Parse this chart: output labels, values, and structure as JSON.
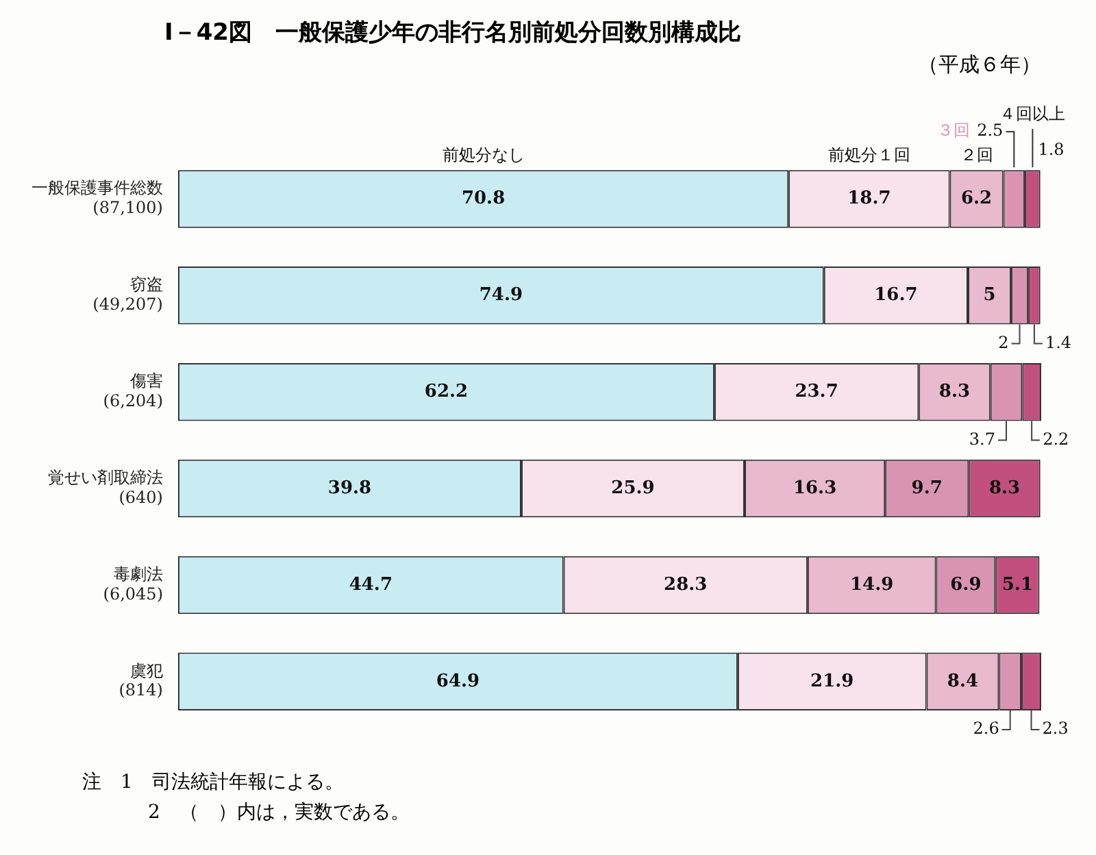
{
  "chart_data": {
    "type": "bar",
    "orientation": "horizontal",
    "stacked": true,
    "title": "Ⅰ－42図　一般保護少年の非行名別前処分回数別構成比",
    "subtitle": "（平成６年）",
    "categories": [
      "一般保護事件総数 (87,100)",
      "窃盗 (49,207)",
      "傷害 (6,204)",
      "覚せい剤取締法 (640)",
      "毒劇法 (6,045)",
      "虞犯 (814)"
    ],
    "series": [
      {
        "name": "前処分なし",
        "color": "#c9ecf3",
        "values": [
          70.8,
          74.9,
          62.2,
          39.8,
          44.7,
          64.9
        ]
      },
      {
        "name": "前処分１回",
        "color": "#f8e2ec",
        "values": [
          18.7,
          16.7,
          23.7,
          25.9,
          28.3,
          21.9
        ]
      },
      {
        "name": "２回",
        "color": "#e9b9cd",
        "values": [
          6.2,
          5.0,
          8.3,
          16.3,
          14.9,
          8.4
        ]
      },
      {
        "name": "３回",
        "color": "#d994b2",
        "values": [
          2.5,
          2.0,
          3.7,
          9.7,
          6.9,
          2.6
        ]
      },
      {
        "name": "４回以上",
        "color": "#c2507e",
        "values": [
          1.8,
          1.4,
          2.2,
          8.3,
          5.1,
          2.3
        ]
      }
    ],
    "data_labels": true,
    "annotations": [
      "注　1　司法統計年報による。",
      "2　（　）内は，実数である。"
    ]
  }
}
